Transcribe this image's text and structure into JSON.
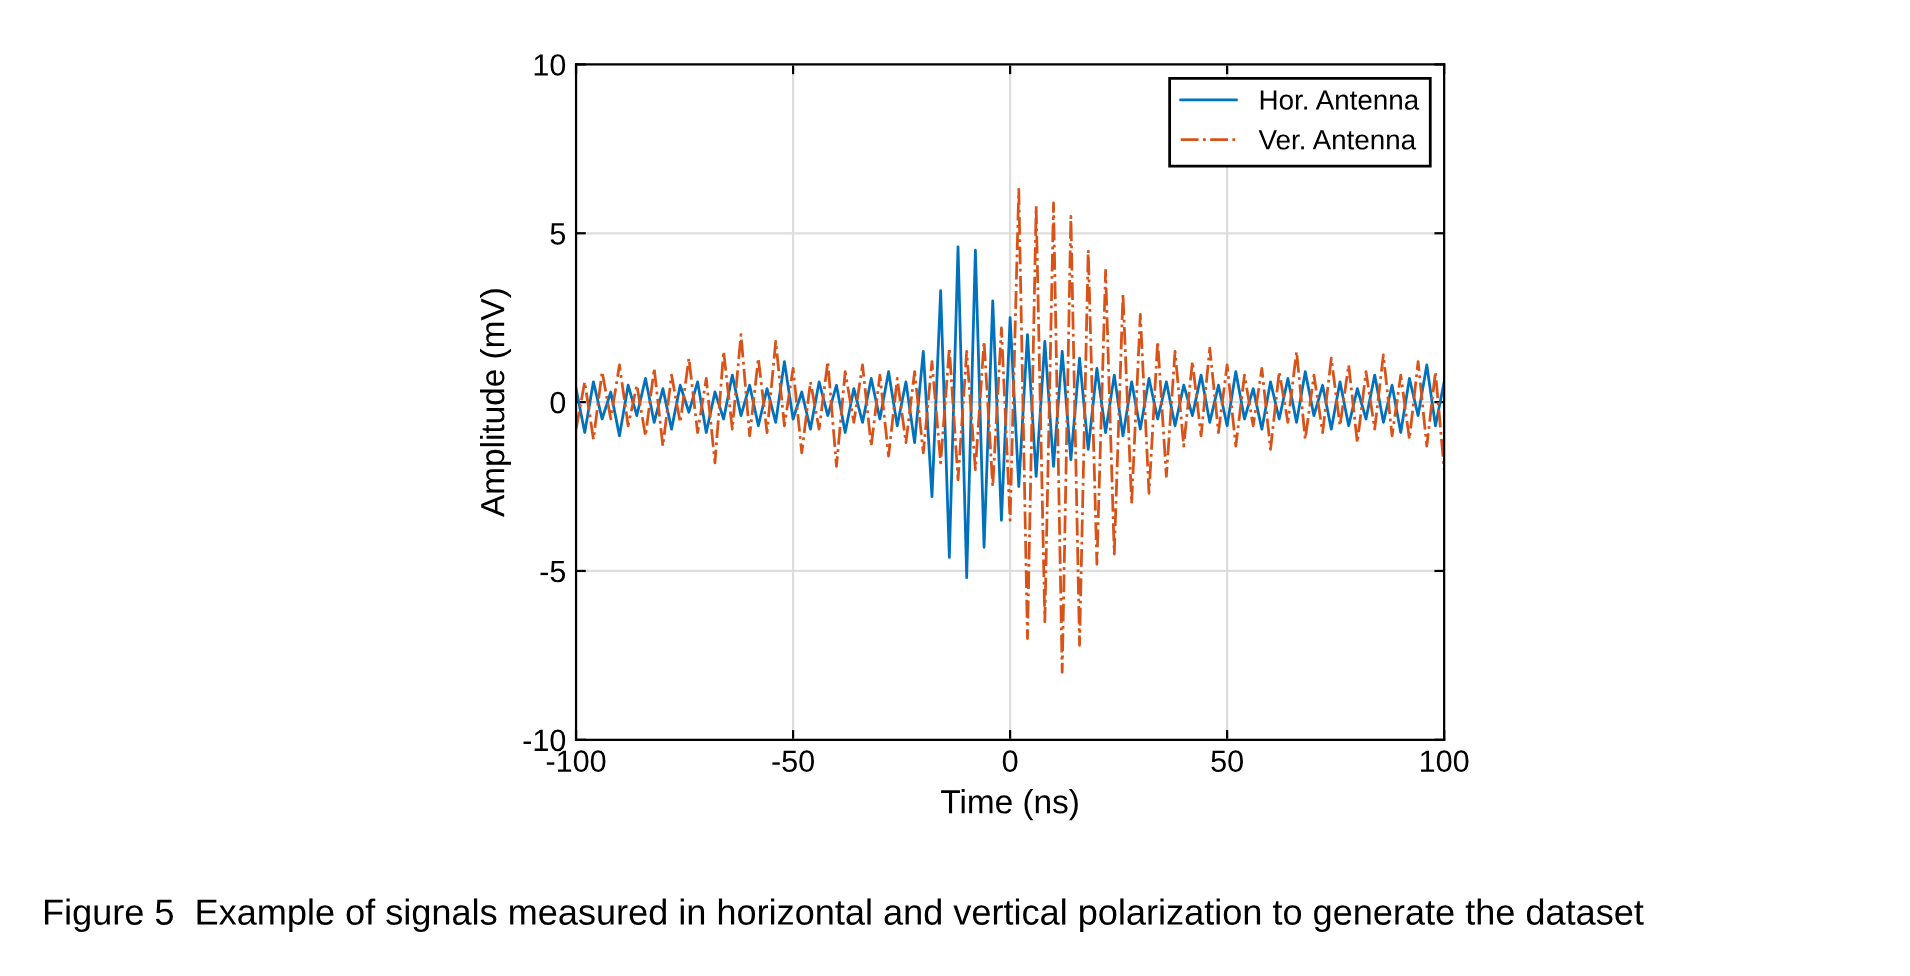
{
  "chart_data": {
    "type": "line",
    "xlabel": "Time (ns)",
    "ylabel": "Amplitude (mV)",
    "annotations": [
      "Figure 5  Example of signals measured in horizontal and vertical polarization to generate the dataset"
    ],
    "x": [
      -100,
      -98,
      -96,
      -94,
      -92,
      -90,
      -88,
      -86,
      -84,
      -82,
      -80,
      -78,
      -76,
      -74,
      -72,
      -70,
      -68,
      -66,
      -64,
      -62,
      -60,
      -58,
      -56,
      -54,
      -52,
      -50,
      -48,
      -46,
      -44,
      -42,
      -40,
      -38,
      -36,
      -34,
      -32,
      -30,
      -28,
      -26,
      -24,
      -22,
      -20,
      -18,
      -16,
      -14,
      -12,
      -10,
      -8,
      -6,
      -4,
      -2,
      0,
      2,
      4,
      6,
      8,
      10,
      12,
      14,
      16,
      18,
      20,
      22,
      24,
      26,
      28,
      30,
      32,
      34,
      36,
      38,
      40,
      42,
      44,
      46,
      48,
      50,
      52,
      54,
      56,
      58,
      60,
      62,
      64,
      66,
      68,
      70,
      72,
      74,
      76,
      78,
      80,
      82,
      84,
      86,
      88,
      90,
      92,
      94,
      96,
      98,
      100
    ],
    "series": [
      {
        "name": "Hor. Antenna",
        "color": "#0072bd",
        "line_style": "solid",
        "values": [
          0.4,
          -0.9,
          0.6,
          -0.5,
          0.3,
          -1.0,
          0.5,
          -0.4,
          0.7,
          -0.6,
          0.4,
          -0.8,
          0.5,
          -0.3,
          0.6,
          -0.9,
          0.3,
          -0.5,
          0.8,
          -0.4,
          0.5,
          -0.7,
          0.4,
          -0.6,
          1.2,
          -0.5,
          0.3,
          -0.8,
          0.6,
          -0.4,
          0.5,
          -0.9,
          0.4,
          -0.6,
          0.7,
          -0.5,
          0.9,
          -0.7,
          0.6,
          -1.2,
          1.5,
          -2.8,
          3.3,
          -4.6,
          4.6,
          -5.2,
          4.5,
          -4.3,
          3.0,
          -3.5,
          2.5,
          -2.5,
          2.0,
          -2.2,
          1.8,
          -1.9,
          1.5,
          -1.7,
          1.3,
          -1.4,
          1.0,
          -0.9,
          0.8,
          -1.0,
          0.6,
          -0.8,
          0.7,
          -0.5,
          0.6,
          -0.7,
          0.5,
          -0.4,
          0.8,
          -0.6,
          0.5,
          -0.7,
          0.9,
          -0.5,
          0.4,
          -0.8,
          0.6,
          -0.5,
          0.7,
          -0.6,
          0.9,
          -0.4,
          0.5,
          -0.8,
          0.6,
          -0.7,
          0.4,
          -0.5,
          0.8,
          -0.6,
          0.5,
          -0.9,
          0.7,
          -0.4,
          1.1,
          -0.7,
          0.6
        ]
      },
      {
        "name": "Ver. Antenna",
        "color": "#d95319",
        "line_style": "dashed",
        "values": [
          -0.8,
          0.6,
          -1.1,
          0.9,
          -0.5,
          1.1,
          -0.7,
          0.5,
          -1.0,
          1.0,
          -1.3,
          0.8,
          -0.6,
          1.3,
          -0.9,
          0.7,
          -1.8,
          1.5,
          -0.8,
          2.0,
          -1.0,
          1.3,
          -0.9,
          1.8,
          -0.7,
          1.0,
          -1.5,
          0.6,
          -0.8,
          1.2,
          -1.9,
          0.9,
          -0.6,
          1.1,
          -1.3,
          0.8,
          -1.6,
          0.7,
          -1.2,
          0.9,
          -1.5,
          1.2,
          -1.8,
          1.6,
          -2.3,
          1.5,
          -2.0,
          1.8,
          -2.5,
          2.2,
          -3.5,
          6.3,
          -7.0,
          5.8,
          -6.5,
          5.9,
          -8.0,
          5.5,
          -7.2,
          4.5,
          -4.8,
          3.9,
          -4.5,
          3.2,
          -3.0,
          2.6,
          -2.7,
          1.8,
          -2.2,
          1.5,
          -1.3,
          1.2,
          -1.0,
          1.6,
          -0.9,
          1.1,
          -1.3,
          0.8,
          -0.7,
          1.0,
          -1.4,
          0.9,
          -0.6,
          1.5,
          -1.1,
          0.8,
          -0.9,
          1.3,
          -0.7,
          1.1,
          -1.2,
          0.9,
          -0.8,
          1.4,
          -1.0,
          0.8,
          -1.1,
          1.2,
          -1.3,
          0.9,
          -2.0
        ]
      }
    ],
    "xlim": [
      -100,
      100
    ],
    "xticks": [
      -100,
      -50,
      0,
      50,
      100
    ],
    "ylim": [
      -10,
      10
    ],
    "yticks": [
      -10,
      -5,
      0,
      5,
      10
    ],
    "grid": true,
    "legend": "top right",
    "marker": "none"
  }
}
